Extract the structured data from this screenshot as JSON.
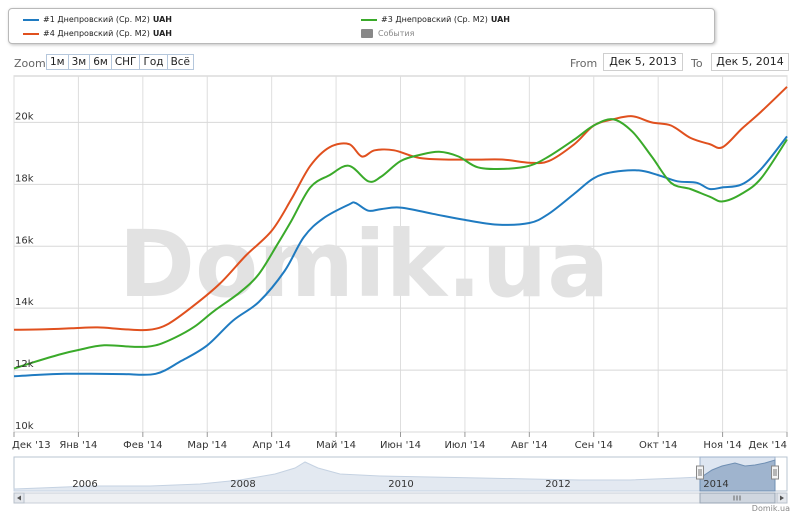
{
  "legend": {
    "items": [
      {
        "prefix": "#1 Днепровский (Ср. М2)",
        "unit": "UAH",
        "color": "#1f7bc1"
      },
      {
        "prefix": "#4 Днепровский (Ср. М2)",
        "unit": "UAH",
        "color": "#e0501e"
      },
      {
        "prefix": "#3 Днепровский (Ср. М2)",
        "unit": "UAH",
        "color": "#3aaa2a"
      },
      {
        "prefix": "События",
        "unit": "",
        "color": "#888888"
      }
    ]
  },
  "zoom": {
    "label": "Zoom",
    "buttons": [
      "1м",
      "3м",
      "6м",
      "СНГ",
      "Год",
      "Всё"
    ]
  },
  "range": {
    "from_label": "From",
    "from_value": "Дек 5, 2013",
    "to_label": "To",
    "to_value": "Дек 5, 2014"
  },
  "watermark": "Domik.ua",
  "credit": "Domik.ua",
  "chart_data": {
    "type": "line",
    "x_ticks": [
      "Дек '13",
      "Янв '14",
      "Фев '14",
      "Мар '14",
      "Апр '14",
      "Май '14",
      "Июн '14",
      "Июл '14",
      "Авг '14",
      "Сен '14",
      "Окт '14",
      "Ноя '14",
      "Дек '14"
    ],
    "x_range": [
      0,
      12
    ],
    "y_ticks": [
      "10k",
      "12k",
      "14k",
      "16k",
      "18k",
      "20k"
    ],
    "ylim": [
      10000,
      21500
    ],
    "series": [
      {
        "name": "#1 Днепровский (Ср. М2) UAH",
        "color": "#1f7bc1",
        "x": [
          0,
          0.4,
          0.8,
          1.2,
          1.7,
          2.2,
          2.6,
          3.0,
          3.4,
          3.8,
          4.2,
          4.5,
          4.8,
          5.2,
          5.3,
          5.5,
          5.7,
          6.0,
          6.5,
          7.0,
          7.5,
          8.0,
          8.3,
          8.7,
          9.0,
          9.3,
          9.7,
          10.0,
          10.3,
          10.6,
          10.8,
          11.0,
          11.3,
          11.6,
          12.0
        ],
        "values": [
          11800,
          11850,
          11880,
          11880,
          11870,
          11880,
          12300,
          12800,
          13600,
          14200,
          15200,
          16300,
          16900,
          17350,
          17400,
          17150,
          17200,
          17250,
          17050,
          16850,
          16700,
          16750,
          17050,
          17700,
          18200,
          18400,
          18450,
          18300,
          18100,
          18050,
          17850,
          17900,
          18000,
          18500,
          19550
        ]
      },
      {
        "name": "#4 Днепровский (Ср. М2) UAH",
        "color": "#e0501e",
        "x": [
          0,
          0.5,
          0.9,
          1.3,
          1.7,
          2.1,
          2.4,
          2.8,
          3.2,
          3.6,
          4.0,
          4.3,
          4.6,
          4.9,
          5.2,
          5.4,
          5.6,
          5.9,
          6.3,
          6.8,
          7.2,
          7.6,
          8.0,
          8.3,
          8.7,
          9.0,
          9.3,
          9.6,
          9.9,
          10.2,
          10.5,
          10.8,
          11.0,
          11.3,
          11.6,
          12.0
        ],
        "values": [
          13300,
          13320,
          13350,
          13380,
          13320,
          13300,
          13500,
          14100,
          14800,
          15700,
          16500,
          17500,
          18600,
          19200,
          19300,
          18900,
          19100,
          19100,
          18850,
          18800,
          18800,
          18800,
          18700,
          18750,
          19300,
          19900,
          20100,
          20200,
          20000,
          19900,
          19500,
          19300,
          19200,
          19800,
          20350,
          21150
        ]
      },
      {
        "name": "#3 Днепровский (Ср. М2) UAH",
        "color": "#3aaa2a",
        "x": [
          0,
          0.3,
          0.7,
          1.0,
          1.4,
          1.9,
          2.2,
          2.5,
          2.8,
          3.1,
          3.5,
          3.8,
          4.1,
          4.3,
          4.6,
          4.9,
          5.2,
          5.5,
          5.7,
          6.0,
          6.3,
          6.6,
          6.9,
          7.2,
          7.6,
          8.0,
          8.3,
          8.7,
          9.0,
          9.3,
          9.6,
          9.9,
          10.2,
          10.5,
          10.8,
          11.0,
          11.3,
          11.6,
          12.0
        ],
        "values": [
          12050,
          12250,
          12500,
          12650,
          12800,
          12750,
          12800,
          13050,
          13400,
          13900,
          14500,
          15100,
          16100,
          16800,
          17900,
          18300,
          18600,
          18100,
          18250,
          18750,
          18950,
          19050,
          18900,
          18550,
          18500,
          18600,
          18900,
          19450,
          19900,
          20100,
          19700,
          18900,
          18050,
          17850,
          17600,
          17450,
          17700,
          18200,
          19450
        ]
      }
    ],
    "navigator": {
      "x_labels": [
        "2006",
        "2008",
        "2010",
        "2012",
        "2014"
      ]
    },
    "grid": true
  }
}
